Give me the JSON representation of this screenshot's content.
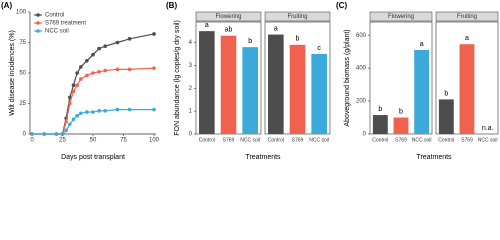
{
  "chart_data": [
    {
      "type": "line",
      "panel_label": "(A)",
      "xlabel": "Days post transplant",
      "ylabel": "Wilt disease incidences (%)",
      "x": [
        0,
        10,
        20,
        25,
        28,
        31,
        34,
        37,
        40,
        45,
        50,
        55,
        60,
        70,
        80,
        100
      ],
      "series": [
        {
          "name": "Control",
          "color": "#4d4d4d",
          "values": [
            0,
            0,
            0,
            0,
            13,
            30,
            40,
            50,
            55,
            60,
            65,
            70,
            72,
            75,
            78,
            82
          ]
        },
        {
          "name": "S769 treatment",
          "color": "#f0624d",
          "values": [
            0,
            0,
            0,
            0,
            10,
            25,
            35,
            40,
            45,
            48,
            50,
            51,
            52,
            53,
            53,
            54
          ]
        },
        {
          "name": "NCC soil",
          "color": "#3ba9d9",
          "values": [
            0,
            0,
            0,
            0,
            3,
            8,
            12,
            15,
            17,
            18,
            18,
            19,
            19,
            20,
            20,
            20
          ]
        }
      ],
      "xlim": [
        0,
        100
      ],
      "xticks": [
        0,
        25,
        50,
        75,
        100
      ],
      "ylim": [
        0,
        100
      ],
      "yticks": [
        0,
        25,
        50,
        75,
        100
      ],
      "legend": "top-left"
    },
    {
      "type": "facet-bar",
      "panel_label": "(B)",
      "xlabel": "Treatments",
      "ylabel": "FON abundance (lg copies/g dry soil)",
      "categories": [
        "Control",
        "S769",
        "NCC soil"
      ],
      "colors": [
        "#4d4d4d",
        "#f0624d",
        "#3ba9d9"
      ],
      "facets": [
        {
          "name": "Flowering",
          "values": [
            4.5,
            4.3,
            3.8
          ],
          "annotations": [
            "a",
            "ab",
            "b"
          ]
        },
        {
          "name": "Fruiting",
          "values": [
            4.35,
            3.9,
            3.5
          ],
          "annotations": [
            "a",
            "b",
            "c"
          ]
        }
      ],
      "ylim": [
        0,
        4.9
      ],
      "yticks": [
        0,
        1,
        2,
        3,
        4
      ]
    },
    {
      "type": "facet-bar",
      "panel_label": "(C)",
      "xlabel": "Treatments",
      "ylabel": "Aboveground biomass (g/plant)",
      "categories": [
        "Control",
        "S769",
        "NCC soil"
      ],
      "colors": [
        "#4d4d4d",
        "#f0624d",
        "#3ba9d9"
      ],
      "facets": [
        {
          "name": "Flowering",
          "values": [
            115,
            100,
            510
          ],
          "annotations": [
            "b",
            "b",
            "a"
          ]
        },
        {
          "name": "Fruiting",
          "values": [
            210,
            545,
            null
          ],
          "annotations": [
            "b",
            "a",
            "n.a."
          ]
        }
      ],
      "ylim": [
        0,
        680
      ],
      "yticks": [
        0,
        200,
        400,
        600
      ]
    }
  ]
}
